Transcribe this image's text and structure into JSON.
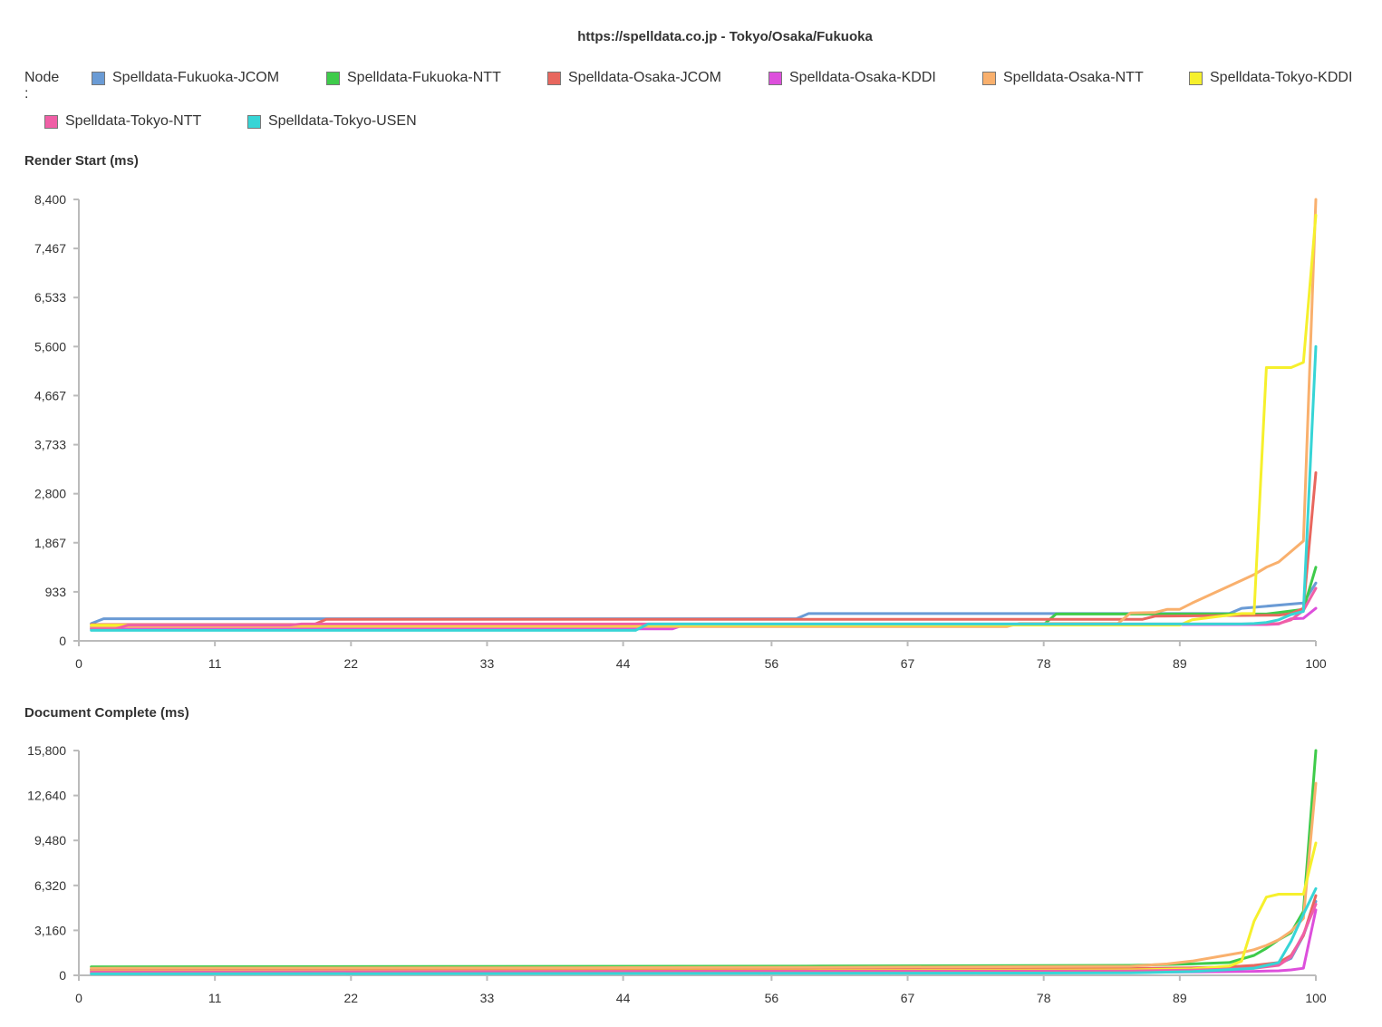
{
  "title": "https://spelldata.co.jp - Tokyo/Osaka/Fukuoka",
  "legend": {
    "label": "Node :",
    "items": [
      {
        "name": "Spelldata-Fukuoka-JCOM",
        "color": "#6a9bd5"
      },
      {
        "name": "Spelldata-Fukuoka-NTT",
        "color": "#3ecb4a"
      },
      {
        "name": "Spelldata-Osaka-JCOM",
        "color": "#e8675e"
      },
      {
        "name": "Spelldata-Osaka-KDDI",
        "color": "#dd4fdc"
      },
      {
        "name": "Spelldata-Osaka-NTT",
        "color": "#f9b06d"
      },
      {
        "name": "Spelldata-Tokyo-KDDI",
        "color": "#f6f02c"
      },
      {
        "name": "Spelldata-Tokyo-NTT",
        "color": "#f05fa6"
      },
      {
        "name": "Spelldata-Tokyo-USEN",
        "color": "#37d5d6"
      }
    ]
  },
  "chart_data": [
    {
      "type": "line",
      "title": "Render Start (ms)",
      "xlim": [
        0,
        100
      ],
      "ylim": [
        0,
        8400
      ],
      "xticks": [
        "0",
        "11",
        "22",
        "33",
        "44",
        "56",
        "67",
        "78",
        "89",
        "100"
      ],
      "yticks": [
        "0",
        "933",
        "1,867",
        "2,800",
        "3,733",
        "4,667",
        "5,600",
        "6,533",
        "7,467",
        "8,400"
      ],
      "series": [
        {
          "name": "Spelldata-Fukuoka-JCOM",
          "color": "#6a9bd5",
          "x": [
            1,
            2,
            19,
            20,
            58,
            59,
            93,
            94,
            99,
            100
          ],
          "y": [
            330,
            420,
            420,
            420,
            420,
            520,
            520,
            620,
            720,
            1100
          ]
        },
        {
          "name": "Spelldata-Fukuoka-NTT",
          "color": "#3ecb4a",
          "x": [
            1,
            45,
            46,
            78,
            79,
            96,
            97,
            99,
            100
          ],
          "y": [
            260,
            260,
            310,
            310,
            510,
            510,
            540,
            600,
            1400
          ]
        },
        {
          "name": "Spelldata-Osaka-JCOM",
          "color": "#e8675e",
          "x": [
            1,
            19,
            20,
            86,
            87,
            97,
            98,
            99,
            100
          ],
          "y": [
            310,
            310,
            410,
            410,
            470,
            490,
            520,
            620,
            3200
          ]
        },
        {
          "name": "Spelldata-Osaka-KDDI",
          "color": "#dd4fdc",
          "x": [
            1,
            47,
            48,
            49,
            96,
            97,
            98,
            99,
            100
          ],
          "y": [
            230,
            230,
            230,
            310,
            310,
            320,
            420,
            430,
            620
          ]
        },
        {
          "name": "Spelldata-Osaka-NTT",
          "color": "#f9b06d",
          "x": [
            1,
            75,
            76,
            84,
            85,
            87,
            88,
            89,
            90,
            94,
            95,
            96,
            97,
            98,
            99,
            100
          ],
          "y": [
            270,
            270,
            330,
            330,
            530,
            540,
            600,
            600,
            720,
            1150,
            1260,
            1400,
            1500,
            1700,
            1900,
            8400
          ]
        },
        {
          "name": "Spelldata-Tokyo-KDDI",
          "color": "#f6f02c",
          "x": [
            1,
            89,
            90,
            94,
            95,
            96,
            97,
            98,
            99,
            100
          ],
          "y": [
            300,
            300,
            400,
            520,
            520,
            5200,
            5200,
            5200,
            5300,
            8100
          ]
        },
        {
          "name": "Spelldata-Tokyo-NTT",
          "color": "#f05fa6",
          "x": [
            1,
            3,
            4,
            17,
            18,
            96,
            97,
            98,
            99,
            100
          ],
          "y": [
            230,
            230,
            300,
            300,
            320,
            320,
            330,
            400,
            580,
            1000
          ]
        },
        {
          "name": "Spelldata-Tokyo-USEN",
          "color": "#37d5d6",
          "x": [
            1,
            45,
            46,
            94,
            95,
            96,
            97,
            98,
            99,
            100
          ],
          "y": [
            200,
            200,
            320,
            320,
            330,
            350,
            400,
            500,
            560,
            5600
          ]
        }
      ]
    },
    {
      "type": "line",
      "title": "Document Complete (ms)",
      "xlim": [
        0,
        100
      ],
      "ylim": [
        0,
        15800
      ],
      "xticks": [
        "0",
        "11",
        "22",
        "33",
        "44",
        "56",
        "67",
        "78",
        "89",
        "100"
      ],
      "yticks": [
        "0",
        "3,160",
        "6,320",
        "9,480",
        "12,640",
        "15,800"
      ],
      "series": [
        {
          "name": "Spelldata-Fukuoka-JCOM",
          "color": "#6a9bd5",
          "x": [
            1,
            30,
            60,
            85,
            90,
            93,
            95,
            97,
            98,
            99,
            100
          ],
          "y": [
            350,
            380,
            400,
            420,
            480,
            560,
            650,
            800,
            1200,
            2800,
            5200
          ]
        },
        {
          "name": "Spelldata-Fukuoka-NTT",
          "color": "#3ecb4a",
          "x": [
            1,
            30,
            60,
            85,
            90,
            93,
            95,
            96,
            97,
            98,
            99,
            100
          ],
          "y": [
            600,
            620,
            650,
            700,
            800,
            900,
            1400,
            1900,
            2500,
            3000,
            4500,
            15800
          ]
        },
        {
          "name": "Spelldata-Osaka-JCOM",
          "color": "#e8675e",
          "x": [
            1,
            30,
            60,
            85,
            90,
            93,
            95,
            97,
            98,
            99,
            100
          ],
          "y": [
            420,
            440,
            460,
            480,
            520,
            600,
            700,
            900,
            1400,
            2800,
            5600
          ]
        },
        {
          "name": "Spelldata-Osaka-KDDI",
          "color": "#dd4fdc",
          "x": [
            1,
            30,
            60,
            85,
            90,
            95,
            97,
            98,
            99,
            100
          ],
          "y": [
            150,
            170,
            190,
            210,
            240,
            280,
            320,
            380,
            500,
            4600
          ]
        },
        {
          "name": "Spelldata-Osaka-NTT",
          "color": "#f9b06d",
          "x": [
            1,
            30,
            60,
            85,
            88,
            90,
            92,
            94,
            95,
            96,
            97,
            98,
            99,
            100
          ],
          "y": [
            500,
            520,
            560,
            640,
            800,
            1000,
            1300,
            1600,
            1800,
            2100,
            2500,
            3100,
            4000,
            13500
          ]
        },
        {
          "name": "Spelldata-Tokyo-KDDI",
          "color": "#f6f02c",
          "x": [
            1,
            30,
            60,
            85,
            90,
            93,
            94,
            95,
            96,
            97,
            98,
            99,
            100
          ],
          "y": [
            280,
            300,
            330,
            380,
            450,
            650,
            1000,
            3800,
            5500,
            5700,
            5700,
            5700,
            9300
          ]
        },
        {
          "name": "Spelldata-Tokyo-NTT",
          "color": "#f05fa6",
          "x": [
            1,
            30,
            60,
            85,
            90,
            95,
            97,
            98,
            99,
            100
          ],
          "y": [
            250,
            270,
            290,
            310,
            360,
            500,
            700,
            1300,
            2900,
            5000
          ]
        },
        {
          "name": "Spelldata-Tokyo-USEN",
          "color": "#37d5d6",
          "x": [
            1,
            30,
            60,
            85,
            90,
            95,
            96,
            97,
            98,
            99,
            100
          ],
          "y": [
            100,
            120,
            140,
            170,
            260,
            500,
            700,
            900,
            2400,
            4300,
            6100
          ]
        }
      ]
    }
  ]
}
